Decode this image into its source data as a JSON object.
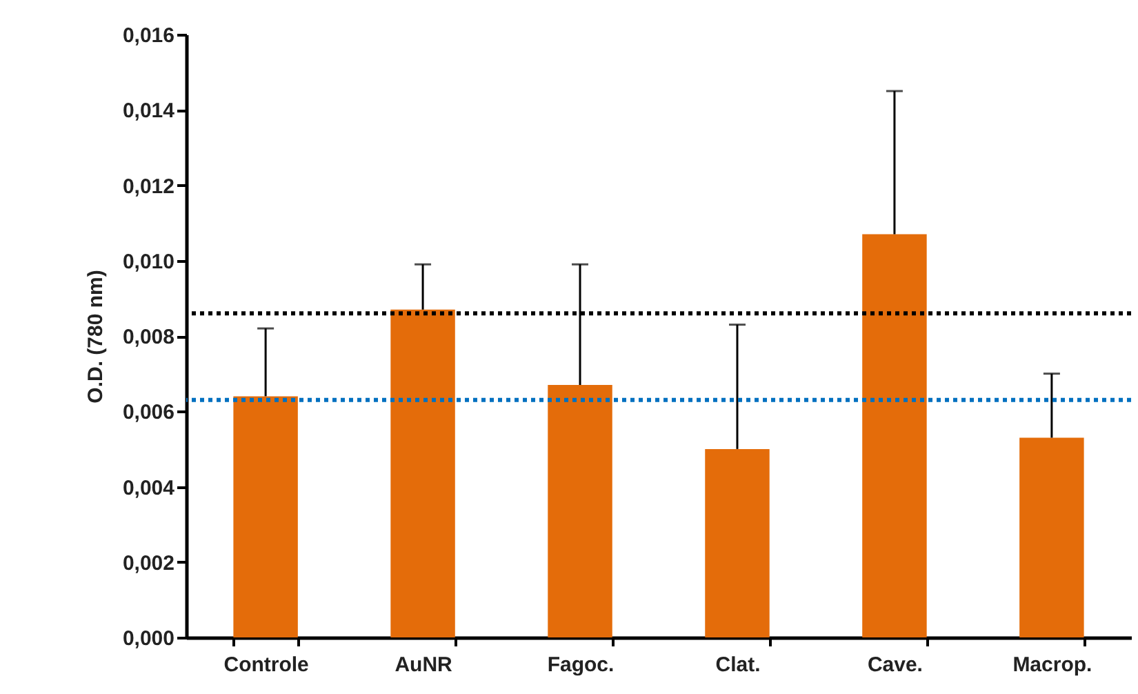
{
  "chart_data": {
    "type": "bar",
    "ylabel": "O.D. (780  nm)",
    "categories": [
      "Controle",
      "AuNR",
      "Fagoc.",
      "Clat.",
      "Cave.",
      "Macrop."
    ],
    "values": [
      0.0064,
      0.0087,
      0.0067,
      0.005,
      0.0107,
      0.0053
    ],
    "errors": [
      [
        0.0064,
        0.0082
      ],
      [
        0.0087,
        0.0099
      ],
      [
        0.0067,
        0.0099
      ],
      [
        0.005,
        0.0083
      ],
      [
        0.0107,
        0.0145
      ],
      [
        0.0053,
        0.007
      ]
    ],
    "color": "#e46c0a",
    "ylim": [
      0,
      0.016
    ],
    "yticks": [
      {
        "value": 0,
        "label": "0,000"
      },
      {
        "value": 0.002,
        "label": "0,002"
      },
      {
        "value": 0.004,
        "label": "0,004"
      },
      {
        "value": 0.006,
        "label": "0,006"
      },
      {
        "value": 0.008,
        "label": "0,008"
      },
      {
        "value": 0.01,
        "label": "0,010"
      },
      {
        "value": 0.012,
        "label": "0,012"
      },
      {
        "value": 0.014,
        "label": "0,014"
      },
      {
        "value": 0.016,
        "label": "0,016"
      }
    ],
    "ref_lines": [
      {
        "axis": "y",
        "value": 0.0086,
        "color": "#000000",
        "line_style": "dotted"
      },
      {
        "axis": "y",
        "value": 0.0063,
        "color": "#0070c0",
        "line_style": "dotted"
      }
    ],
    "grid": false
  }
}
